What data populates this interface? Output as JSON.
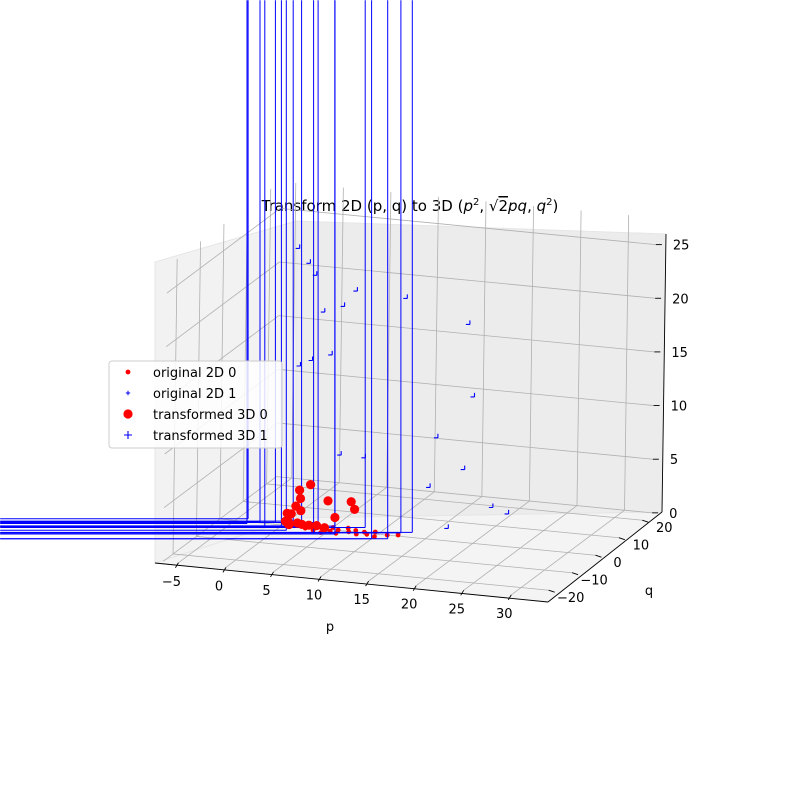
{
  "chart_data": {
    "type": "scatter",
    "projection": "3d",
    "title_plain": "Transform 2D (p, q) to 3D (",
    "title_math": [
      "p",
      "2",
      ", ",
      "√",
      "2",
      "pq",
      ", ",
      "q",
      "2",
      ")"
    ],
    "xlabel": "p",
    "ylabel": "q",
    "zlabel": "",
    "xticks": [
      "−5",
      "0",
      "5",
      "10",
      "15",
      "20",
      "25",
      "30"
    ],
    "yticks": [
      "−20",
      "−10",
      "0",
      "10",
      "20"
    ],
    "zticks": [
      "0",
      "5",
      "10",
      "15",
      "20",
      "25"
    ],
    "grid": true,
    "legend_position": "left",
    "series": [
      {
        "name": "original 2D 0",
        "marker": "dot",
        "color": "#ff0000",
        "points": [
          [
            1.5,
            1.0,
            0
          ],
          [
            2.5,
            -0.5,
            0
          ],
          [
            3.0,
            1.8,
            0
          ],
          [
            3.5,
            -1.2,
            0
          ],
          [
            4.0,
            0.4,
            0
          ],
          [
            4.5,
            -2.0,
            0
          ],
          [
            5.0,
            1.2,
            0
          ],
          [
            5.2,
            -0.8,
            0
          ],
          [
            5.8,
            0.2,
            0
          ],
          [
            6.0,
            -1.6,
            0
          ],
          [
            6.5,
            1.6,
            0
          ],
          [
            7.0,
            -0.2,
            0
          ],
          [
            7.5,
            0.8,
            0
          ],
          [
            8.0,
            -1.0,
            0
          ],
          [
            8.5,
            0.4,
            0
          ],
          [
            9.0,
            -0.6,
            0
          ],
          [
            9.5,
            1.0,
            0
          ],
          [
            10.0,
            -1.4,
            0
          ],
          [
            11.0,
            0.0,
            0
          ],
          [
            12.0,
            0.6,
            0
          ]
        ]
      },
      {
        "name": "original 2D 1",
        "marker": "plus-small",
        "color": "#0000ff",
        "points": [
          [
            -4.0,
            1.5,
            0
          ],
          [
            -3.5,
            -1.0,
            0
          ],
          [
            -2.5,
            0.5,
            0
          ],
          [
            -1.5,
            -1.5,
            0
          ],
          [
            -1.0,
            1.0,
            0
          ],
          [
            0.0,
            -0.5,
            0
          ],
          [
            0.5,
            2.5,
            0
          ],
          [
            1.0,
            -2.5,
            0
          ],
          [
            2.0,
            0.0,
            0
          ],
          [
            3.0,
            3.0,
            0
          ],
          [
            4.0,
            -3.0,
            0
          ],
          [
            5.0,
            2.0,
            0
          ],
          [
            6.0,
            -2.0,
            0
          ],
          [
            8.0,
            2.8,
            0
          ],
          [
            10.0,
            -2.6,
            0
          ],
          [
            12.0,
            1.8,
            0
          ],
          [
            13.0,
            2.6,
            0
          ],
          [
            11.5,
            -1.8,
            0
          ]
        ]
      },
      {
        "name": "transformed 3D 0",
        "marker": "dot-large",
        "color": "#ff0000",
        "points": [
          [
            0.3,
            0.7,
            1.0
          ],
          [
            1.0,
            1.5,
            1.6
          ],
          [
            1.4,
            1.8,
            2.3
          ],
          [
            0.6,
            1.2,
            0.9
          ],
          [
            2.2,
            2.8,
            3.5
          ],
          [
            3.0,
            -1.0,
            0.4
          ],
          [
            2.5,
            -2.0,
            0.6
          ],
          [
            4.0,
            3.0,
            2.1
          ],
          [
            6.0,
            4.8,
            1.9
          ],
          [
            9.0,
            -6.0,
            3.2
          ],
          [
            1.5,
            1.6,
            1.2
          ],
          [
            0.8,
            -0.5,
            0.2
          ],
          [
            3.5,
            0.3,
            0.2
          ],
          [
            4.5,
            -0.4,
            0.2
          ],
          [
            0.5,
            0.3,
            0.1
          ],
          [
            1.2,
            2.2,
            3.0
          ],
          [
            0.2,
            0.4,
            0.3
          ],
          [
            5.0,
            2.0,
            0.8
          ],
          [
            0.4,
            0.8,
            0.2
          ],
          [
            1.8,
            -1.0,
            0.5
          ]
        ]
      },
      {
        "name": "transformed 3D 1",
        "marker": "plus",
        "color": "#0000ff",
        "points": [
          [
            1.0,
            1.6,
            25.6
          ],
          [
            2.0,
            2.2,
            24.2
          ],
          [
            2.5,
            3.0,
            23.0
          ],
          [
            6.0,
            6.2,
            21.3
          ],
          [
            10.5,
            9.3,
            20.5
          ],
          [
            5.0,
            4.9,
            20.0
          ],
          [
            3.2,
            3.8,
            19.5
          ],
          [
            16.0,
            13.9,
            17.8
          ],
          [
            4.6,
            1.5,
            16.0
          ],
          [
            3.2,
            -1.2,
            15.8
          ],
          [
            20.3,
            -1.4,
            13.9
          ],
          [
            25.0,
            -24.5,
            11.3
          ],
          [
            11.9,
            -13.6,
            9.5
          ],
          [
            16.3,
            -0.5,
            9.6
          ],
          [
            2.5,
            -3.5,
            15.6
          ],
          [
            29.3,
            -29.8,
            9.0
          ],
          [
            31.3,
            -31.2,
            8.8
          ],
          [
            19.5,
            -16.7,
            7.9
          ],
          [
            8.0,
            -8.0,
            8.5
          ],
          [
            23.0,
            -23.0,
            5.4
          ]
        ]
      }
    ]
  }
}
